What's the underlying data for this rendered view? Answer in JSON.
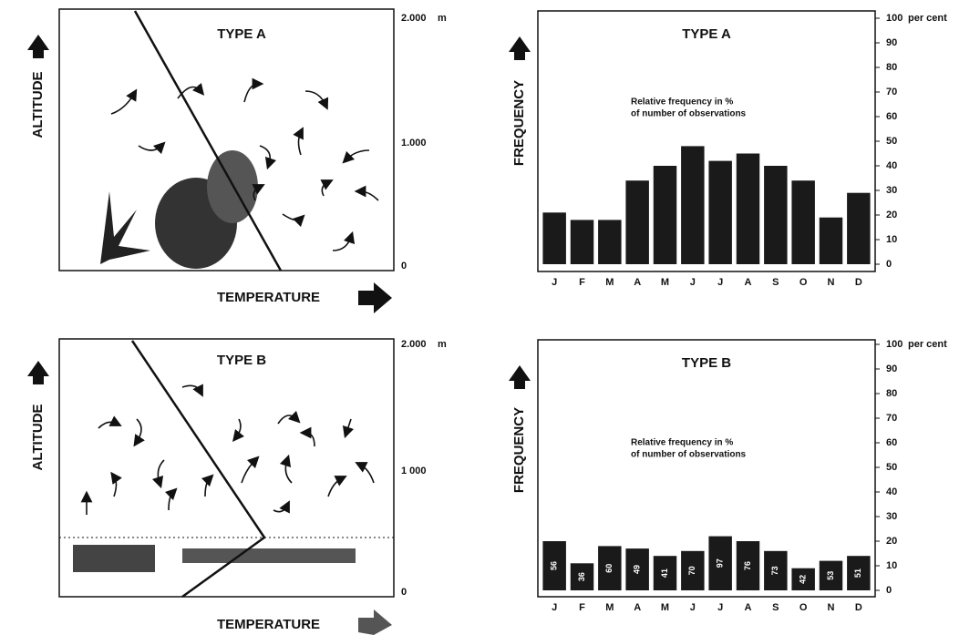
{
  "diagrams": [
    {
      "title": "TYPE A",
      "y_label": "ALTITUDE",
      "x_label": "TEMPERATURE",
      "ticks": [
        "2.000",
        "1.000",
        "0"
      ],
      "unit": "m"
    },
    {
      "title": "TYPE B",
      "y_label": "ALTITUDE",
      "x_label": "TEMPERATURE",
      "ticks": [
        "2.000",
        "1 000",
        "0"
      ],
      "unit": "m"
    }
  ],
  "chart_data": [
    {
      "type": "bar",
      "title": "TYPE A",
      "y_label": "FREQUENCY",
      "y_unit": "per cent",
      "annotation": [
        "Relative frequency in %",
        "of number of observations"
      ],
      "categories": [
        "J",
        "F",
        "M",
        "A",
        "M",
        "J",
        "J",
        "A",
        "S",
        "O",
        "N",
        "D"
      ],
      "values": [
        21,
        18,
        18,
        34,
        40,
        48,
        42,
        45,
        40,
        34,
        19,
        29
      ],
      "color": "#1a1a1a",
      "ylim": [
        0,
        100
      ],
      "yticks": [
        0,
        10,
        20,
        30,
        40,
        50,
        60,
        70,
        80,
        90,
        100
      ]
    },
    {
      "type": "bar",
      "title": "TYPE B",
      "y_label": "FREQUENCY",
      "y_unit": "per cent",
      "annotation": [
        "Relative frequency in %",
        "of number of observations"
      ],
      "categories": [
        "J",
        "F",
        "M",
        "A",
        "M",
        "J",
        "J",
        "A",
        "S",
        "O",
        "N",
        "D"
      ],
      "values": [
        20,
        11,
        18,
        17,
        14,
        16,
        22,
        20,
        16,
        9,
        12,
        14
      ],
      "bar_labels": [
        56,
        36,
        60,
        49,
        41,
        70,
        97,
        76,
        73,
        42,
        53,
        51
      ],
      "color": "#1a1a1a",
      "ylim": [
        0,
        100
      ],
      "yticks": [
        0,
        10,
        20,
        30,
        40,
        50,
        60,
        70,
        80,
        90,
        100
      ]
    }
  ]
}
